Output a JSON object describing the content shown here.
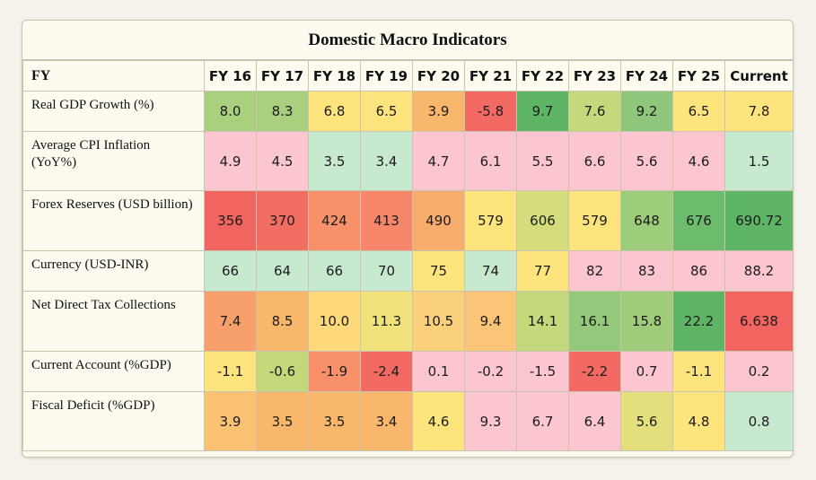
{
  "chart_data": {
    "type": "table",
    "title": "Domestic Macro Indicators",
    "corner_label": "FY",
    "columns": [
      "FY 16",
      "FY 17",
      "FY 18",
      "FY 19",
      "FY 20",
      "FY 21",
      "FY 22",
      "FY 23",
      "FY 24",
      "FY 25",
      "Current"
    ],
    "rows": [
      {
        "label": "Real GDP Growth (%)",
        "values": [
          "8.0",
          "8.3",
          "6.8",
          "6.5",
          "3.9",
          "-5.8",
          "9.7",
          "7.6",
          "9.2",
          "6.5",
          "7.8"
        ],
        "colors": [
          "#a8d07e",
          "#a8d07e",
          "#fde47c",
          "#fde47c",
          "#f9b76b",
          "#f26a63",
          "#5db565",
          "#c3d97c",
          "#8ec77b",
          "#fde47c",
          "#fde47c"
        ]
      },
      {
        "label": "Average CPI Inflation (YoY%)",
        "values": [
          "4.9",
          "4.5",
          "3.5",
          "3.4",
          "4.7",
          "6.1",
          "5.5",
          "6.6",
          "5.6",
          "4.6",
          "1.5"
        ],
        "colors": [
          "#fbc6cf",
          "#fbc6cf",
          "#c6e9cf",
          "#c6e9cf",
          "#fbc6cf",
          "#fbc6cf",
          "#fbc6cf",
          "#fbc6cf",
          "#fbc6cf",
          "#fbc6cf",
          "#c6e9cf"
        ]
      },
      {
        "label": "Forex Reserves (USD billion)",
        "values": [
          "356",
          "370",
          "424",
          "413",
          "490",
          "579",
          "606",
          "579",
          "648",
          "676",
          "690.72"
        ],
        "colors": [
          "#f2645f",
          "#f26d62",
          "#f8906a",
          "#f7866a",
          "#f9ad6c",
          "#fde47c",
          "#d4dc7c",
          "#fde47c",
          "#9dcc7b",
          "#6dbb6d",
          "#5db565"
        ]
      },
      {
        "label": "Currency (USD-INR)",
        "values": [
          "66",
          "64",
          "66",
          "70",
          "75",
          "74",
          "77",
          "82",
          "83",
          "86",
          "88.2"
        ],
        "colors": [
          "#c6e9cf",
          "#c6e9cf",
          "#c6e9cf",
          "#c6e9cf",
          "#fde47c",
          "#c6e9cf",
          "#fde47c",
          "#fbc6cf",
          "#fbc6cf",
          "#fbc6cf",
          "#fbc6cf"
        ]
      },
      {
        "label": "Net Direct Tax Collections",
        "values": [
          "7.4",
          "8.5",
          "10.0",
          "11.3",
          "10.5",
          "9.4",
          "14.1",
          "16.1",
          "15.8",
          "22.2",
          "6.638"
        ],
        "colors": [
          "#f8a06b",
          "#f9b76b",
          "#fdd97c",
          "#f2e27c",
          "#fbd07b",
          "#fbc476",
          "#c3d97c",
          "#94c97b",
          "#9fcc7b",
          "#5db565",
          "#f2645f"
        ]
      },
      {
        "label": "Current Account (%GDP)",
        "values": [
          "-1.1",
          "-0.6",
          "-1.9",
          "-2.4",
          "0.1",
          "-0.2",
          "-1.5",
          "-2.2",
          "0.7",
          "-1.1",
          "0.2"
        ],
        "colors": [
          "#fde47c",
          "#c3d97c",
          "#f8906a",
          "#f26a63",
          "#fbc6cf",
          "#fbc6cf",
          "#fbc6cf",
          "#f26a63",
          "#fbc6cf",
          "#fde47c",
          "#fbc6cf"
        ]
      },
      {
        "label": "Fiscal Deficit (%GDP)",
        "values": [
          "3.9",
          "3.5",
          "3.5",
          "3.4",
          "4.6",
          "9.3",
          "6.7",
          "6.4",
          "5.6",
          "4.8",
          "0.8"
        ],
        "colors": [
          "#fbc273",
          "#f9b76b",
          "#f9b76b",
          "#f9b76b",
          "#fde47c",
          "#fbc6cf",
          "#fbc6cf",
          "#fbc6cf",
          "#e3df7d",
          "#fde47c",
          "#c6e9cf"
        ]
      }
    ]
  }
}
